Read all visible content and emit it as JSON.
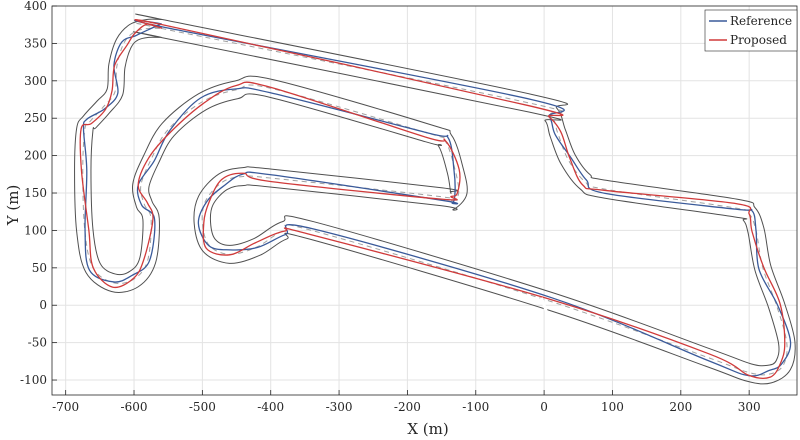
{
  "chart_data": {
    "type": "line",
    "title": "",
    "xlabel": "X (m)",
    "ylabel": "Y (m)",
    "xlim": [
      -720,
      370
    ],
    "ylim": [
      -120,
      400
    ],
    "xticks": [
      -700,
      -600,
      -500,
      -400,
      -300,
      -200,
      -100,
      0,
      100,
      200,
      300
    ],
    "yticks": [
      -100,
      -50,
      0,
      50,
      100,
      150,
      200,
      250,
      300,
      350,
      400
    ],
    "grid": true,
    "legend_position": "top-right",
    "colors": {
      "reference": "#3a5a9a",
      "proposed": "#d03a3a",
      "track_edge": "#505050",
      "centerline": "#a0a0a0",
      "grid": "#e3e3e3",
      "axis": "#262626"
    },
    "series": [
      {
        "name": "Reference",
        "color": "#3a5a9a"
      },
      {
        "name": "Proposed",
        "color": "#d03a3a"
      }
    ],
    "centerline": {
      "x": [
        -560,
        -20,
        10,
        20,
        35,
        60,
        90,
        280,
        300,
        310,
        320,
        340,
        355,
        350,
        330,
        300,
        240,
        10,
        -340,
        -380,
        -420,
        -460,
        -490,
        -500,
        -495,
        -470,
        -440,
        -400,
        -150,
        -135,
        -125,
        -130,
        -145,
        -170,
        -400,
        -450,
        -500,
        -550,
        -575,
        -590,
        -585,
        -575,
        -580,
        -600,
        -630,
        -660,
        -672,
        -675,
        -672,
        -665,
        -645,
        -628,
        -625,
        -615,
        -600,
        -580,
        -560
      ],
      "y": [
        370,
        270,
        255,
        230,
        195,
        165,
        155,
        130,
        122,
        100,
        50,
        0,
        -50,
        -80,
        -92,
        -90,
        -70,
        5,
        100,
        100,
        78,
        68,
        80,
        110,
        140,
        165,
        172,
        170,
        145,
        140,
        150,
        180,
        220,
        230,
        290,
        288,
        272,
        235,
        195,
        160,
        135,
        115,
        60,
        35,
        30,
        50,
        100,
        180,
        235,
        245,
        265,
        285,
        320,
        350,
        365,
        370,
        370
      ]
    }
  },
  "legend": {
    "reference_label": "Reference",
    "proposed_label": "Proposed"
  }
}
